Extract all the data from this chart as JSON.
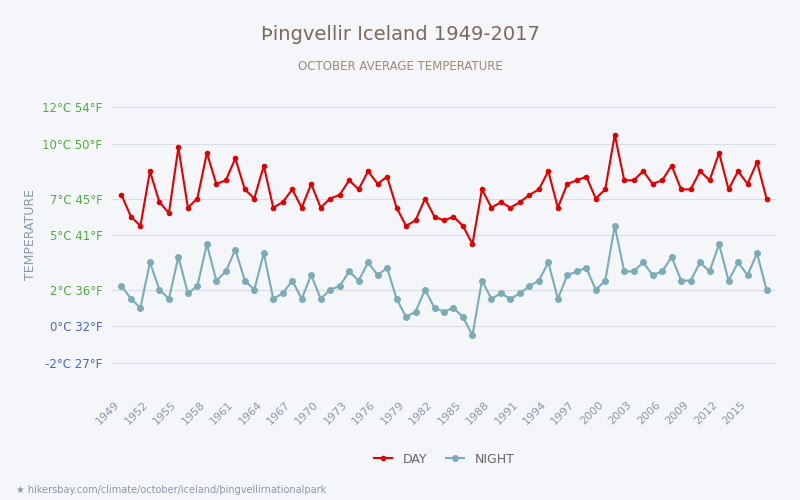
{
  "title": "Þingvellir Iceland 1949-2017",
  "subtitle": "OCTOBER AVERAGE TEMPERATURE",
  "ylabel": "TEMPERATURE",
  "y_ticks_c": [
    -2,
    0,
    2,
    5,
    7,
    10,
    12
  ],
  "y_ticks_f": [
    27,
    32,
    36,
    41,
    45,
    50,
    54
  ],
  "ylim": [
    -3.5,
    13.5
  ],
  "years": [
    1949,
    1950,
    1951,
    1952,
    1953,
    1954,
    1955,
    1956,
    1957,
    1958,
    1959,
    1960,
    1961,
    1962,
    1963,
    1964,
    1965,
    1966,
    1967,
    1968,
    1969,
    1970,
    1971,
    1972,
    1973,
    1974,
    1975,
    1976,
    1977,
    1978,
    1979,
    1980,
    1981,
    1982,
    1983,
    1984,
    1985,
    1986,
    1987,
    1988,
    1989,
    1990,
    1991,
    1992,
    1993,
    1994,
    1995,
    1996,
    1997,
    1998,
    1999,
    2000,
    2001,
    2002,
    2003,
    2004,
    2005,
    2006,
    2007,
    2008,
    2009,
    2010,
    2011,
    2012,
    2013,
    2014,
    2015,
    2016,
    2017
  ],
  "day_temps": [
    7.2,
    6.0,
    5.5,
    8.5,
    6.8,
    6.2,
    9.8,
    6.5,
    7.0,
    9.5,
    7.8,
    8.0,
    9.2,
    7.5,
    7.0,
    8.8,
    6.5,
    6.8,
    7.5,
    6.5,
    7.8,
    6.5,
    7.0,
    7.2,
    8.0,
    7.5,
    8.5,
    7.8,
    8.2,
    6.5,
    5.5,
    5.8,
    7.0,
    6.0,
    5.8,
    6.0,
    5.5,
    4.5,
    7.5,
    6.5,
    6.8,
    6.5,
    6.8,
    7.2,
    7.5,
    8.5,
    6.5,
    7.8,
    8.0,
    8.2,
    7.0,
    7.5,
    10.5,
    8.0,
    8.0,
    8.5,
    7.8,
    8.0,
    8.8,
    7.5,
    7.5,
    8.5,
    8.0,
    9.5,
    7.5,
    8.5,
    7.8,
    9.0,
    7.0
  ],
  "night_temps": [
    2.2,
    1.5,
    1.0,
    3.5,
    2.0,
    1.5,
    3.8,
    1.8,
    2.2,
    4.5,
    2.5,
    3.0,
    4.2,
    2.5,
    2.0,
    4.0,
    1.5,
    1.8,
    2.5,
    1.5,
    2.8,
    1.5,
    2.0,
    2.2,
    3.0,
    2.5,
    3.5,
    2.8,
    3.2,
    1.5,
    0.5,
    0.8,
    2.0,
    1.0,
    0.8,
    1.0,
    0.5,
    -0.5,
    2.5,
    1.5,
    1.8,
    1.5,
    1.8,
    2.2,
    2.5,
    3.5,
    1.5,
    2.8,
    3.0,
    3.2,
    2.0,
    2.5,
    5.5,
    3.0,
    3.0,
    3.5,
    2.8,
    3.0,
    3.8,
    2.5,
    2.5,
    3.5,
    3.0,
    4.5,
    2.5,
    3.5,
    2.8,
    4.0,
    2.0
  ],
  "day_color": "#e00000",
  "night_color": "#7aacb8",
  "title_color": "#7a6a5a",
  "subtitle_color": "#9a8a7a",
  "ylabel_color": "#8a9aaa",
  "tick_color_green": "#55aa44",
  "tick_color_blue": "#4466cc",
  "grid_color": "#d8dde8",
  "bg_color": "#f5f6fa",
  "legend_night": "NIGHT",
  "legend_day": "DAY",
  "url_text": "★ hikersbay.com/climate/october/iceland/þingvellirnationalpark"
}
